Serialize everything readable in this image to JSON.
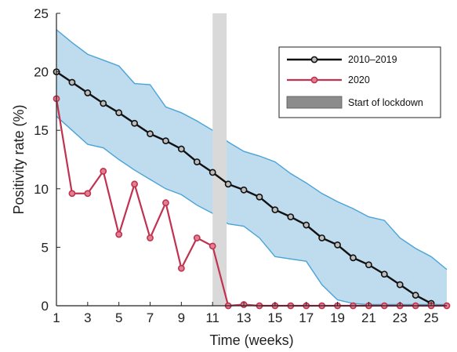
{
  "chart_data": {
    "type": "line",
    "xlabel": "Time (weeks)",
    "ylabel": "Positivity rate (%)",
    "xlim": [
      1,
      26
    ],
    "ylim": [
      0,
      25
    ],
    "x_ticks": [
      1,
      3,
      5,
      7,
      9,
      11,
      13,
      15,
      17,
      19,
      21,
      23,
      25
    ],
    "y_ticks": [
      0,
      5,
      10,
      15,
      20,
      25
    ],
    "grid": false,
    "legend_position": "top-right",
    "lockdown_band": {
      "label": "Start of lockdown",
      "x_start": 11,
      "x_end": 11.9,
      "color": "#d9d9d9"
    },
    "band": {
      "x": [
        1,
        2,
        3,
        4,
        5,
        6,
        7,
        8,
        9,
        10,
        11,
        12,
        13,
        14,
        15,
        16,
        17,
        18,
        19,
        20,
        21,
        22,
        23,
        24,
        25,
        26
      ],
      "upper": [
        23.6,
        22.5,
        21.5,
        21.0,
        20.5,
        19.0,
        18.9,
        17.0,
        16.5,
        15.8,
        15.0,
        14.0,
        13.2,
        12.8,
        12.3,
        11.3,
        10.5,
        9.6,
        8.9,
        8.3,
        7.6,
        7.3,
        5.8,
        4.9,
        4.2,
        3.1
      ],
      "lower": [
        16.2,
        15.0,
        13.8,
        13.5,
        12.5,
        11.6,
        10.8,
        10.0,
        9.5,
        8.6,
        7.9,
        7.0,
        6.8,
        5.8,
        4.2,
        4.0,
        3.8,
        1.8,
        0.5,
        0.2,
        0.1,
        0.1,
        0.1,
        0.1,
        0.1,
        0.1
      ],
      "color": "#bfdcef",
      "edge_color": "#4aa3d8"
    },
    "series": [
      {
        "name": "2010–2019",
        "color": "#111111",
        "x": [
          1,
          2,
          3,
          4,
          5,
          6,
          7,
          8,
          9,
          10,
          11,
          12,
          13,
          14,
          15,
          16,
          17,
          18,
          19,
          20,
          21,
          22,
          23,
          24,
          25
        ],
        "y": [
          20.0,
          19.1,
          18.2,
          17.3,
          16.5,
          15.6,
          14.7,
          14.1,
          13.4,
          12.3,
          11.4,
          10.4,
          9.9,
          9.3,
          8.2,
          7.6,
          6.9,
          5.8,
          5.2,
          4.1,
          3.5,
          2.7,
          1.8,
          0.9,
          0.2
        ]
      },
      {
        "name": "2020",
        "color": "#c0324f",
        "x": [
          1,
          2,
          3,
          4,
          5,
          6,
          7,
          8,
          9,
          10,
          11,
          12,
          13,
          14,
          15,
          16,
          17,
          18,
          19,
          20,
          21,
          22,
          23,
          24,
          25,
          26
        ],
        "y": [
          17.7,
          9.6,
          9.6,
          11.5,
          6.1,
          10.4,
          5.8,
          8.8,
          3.2,
          5.8,
          5.1,
          0.0,
          0.1,
          0.0,
          0.0,
          0.0,
          0.0,
          0.0,
          0.0,
          0.0,
          0.0,
          0.0,
          0.0,
          0.0,
          0.0,
          0.0
        ]
      }
    ]
  }
}
